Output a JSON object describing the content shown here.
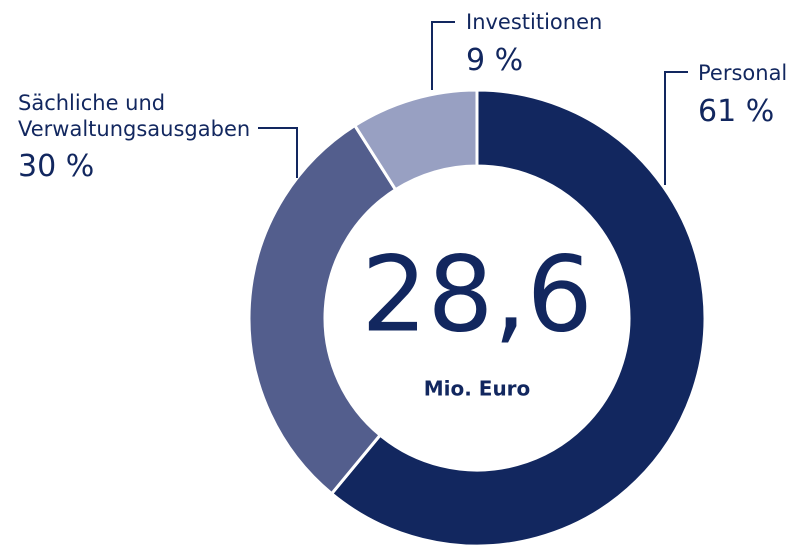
{
  "chart_data": {
    "type": "donut",
    "categories": [
      "Personal",
      "Sächliche und Verwaltungsausgaben",
      "Investitionen"
    ],
    "values": [
      61,
      30,
      9
    ],
    "value_labels": [
      "61 %",
      "30 %",
      "9 %"
    ],
    "colors": [
      "#12275f",
      "#535e8d",
      "#98a0c2"
    ],
    "center_label": "28,6",
    "center_sublabel": "Mio. Euro"
  }
}
